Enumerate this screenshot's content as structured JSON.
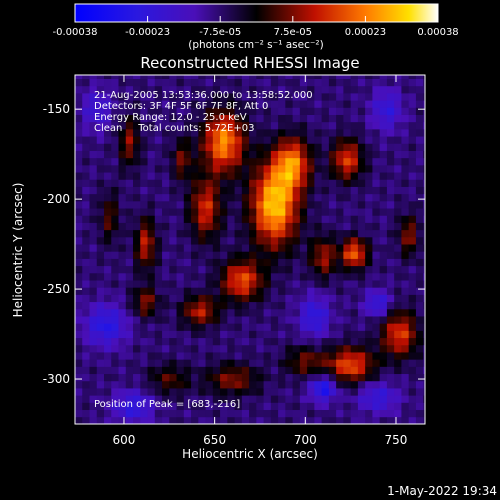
{
  "chart_data": {
    "type": "heatmap",
    "title": "Reconstructed RHESSI Image",
    "xlabel": "Heliocentric X (arcsec)",
    "ylabel": "Heliocentric Y (arcsec)",
    "xlim": [
      573,
      766
    ],
    "ylim": [
      -325,
      -131
    ],
    "xticks": [
      600,
      650,
      700,
      750
    ],
    "yticks": [
      -150,
      -200,
      -250,
      -300
    ],
    "colorbar": {
      "ticks": [
        "-0.00038",
        "-0.00023",
        "-7.5e-05",
        "7.5e-05",
        "0.00023",
        "0.00038"
      ],
      "unit_label": "(photons cm⁻² s⁻¹ asec⁻²)",
      "range": [
        -0.00038,
        0.00038
      ]
    },
    "annotations": [
      "21-Aug-2005 13:53:36.000 to 13:58:52.000",
      "Detectors: 3F 4F 5F 6F 7F 8F, Att 0",
      "Energy Range: 12.0 - 25.0 keV",
      "Clean     Total counts: 5.72E+03"
    ],
    "peak_label": "Position of Peak = [683,-216]",
    "peak": [
      683,
      -216
    ],
    "sources": [
      {
        "x": 683,
        "y": -203,
        "amp": 0.00038,
        "sx": 9,
        "sy": 16
      },
      {
        "x": 693,
        "y": -180,
        "amp": 0.00028,
        "sx": 7,
        "sy": 10
      },
      {
        "x": 655,
        "y": -168,
        "amp": 0.00032,
        "sx": 8,
        "sy": 12
      },
      {
        "x": 645,
        "y": -205,
        "amp": 0.00022,
        "sx": 6,
        "sy": 12
      },
      {
        "x": 665,
        "y": -245,
        "amp": 0.00026,
        "sx": 8,
        "sy": 8
      },
      {
        "x": 642,
        "y": -262,
        "amp": 0.0002,
        "sx": 7,
        "sy": 6
      },
      {
        "x": 723,
        "y": -178,
        "amp": 0.00024,
        "sx": 6,
        "sy": 8
      },
      {
        "x": 727,
        "y": -230,
        "amp": 0.00028,
        "sx": 5,
        "sy": 6
      },
      {
        "x": 710,
        "y": -232,
        "amp": 0.00018,
        "sx": 5,
        "sy": 8
      },
      {
        "x": 725,
        "y": -292,
        "amp": 0.00026,
        "sx": 9,
        "sy": 7
      },
      {
        "x": 752,
        "y": -275,
        "amp": 0.00024,
        "sx": 7,
        "sy": 9
      },
      {
        "x": 757,
        "y": -220,
        "amp": 0.00016,
        "sx": 4,
        "sy": 8
      },
      {
        "x": 700,
        "y": -290,
        "amp": 0.00014,
        "sx": 8,
        "sy": 6
      },
      {
        "x": 612,
        "y": -225,
        "amp": 0.0002,
        "sx": 4,
        "sy": 10
      },
      {
        "x": 603,
        "y": -168,
        "amp": 0.00016,
        "sx": 4,
        "sy": 10
      },
      {
        "x": 632,
        "y": -178,
        "amp": 0.00014,
        "sx": 4,
        "sy": 8
      },
      {
        "x": 592,
        "y": -210,
        "amp": 0.00012,
        "sx": 4,
        "sy": 10
      },
      {
        "x": 660,
        "y": -300,
        "amp": 0.00016,
        "sx": 10,
        "sy": 6
      },
      {
        "x": 625,
        "y": -300,
        "amp": 0.00012,
        "sx": 8,
        "sy": 6
      },
      {
        "x": 612,
        "y": -257,
        "amp": 0.00016,
        "sx": 5,
        "sy": 6
      },
      {
        "x": 590,
        "y": -270,
        "amp": -0.00018,
        "sx": 8,
        "sy": 8
      },
      {
        "x": 705,
        "y": -265,
        "amp": -0.00016,
        "sx": 6,
        "sy": 8
      },
      {
        "x": 710,
        "y": -305,
        "amp": -0.00022,
        "sx": 5,
        "sy": 5
      },
      {
        "x": 605,
        "y": -315,
        "amp": -0.00016,
        "sx": 8,
        "sy": 6
      },
      {
        "x": 740,
        "y": -310,
        "amp": -0.00014,
        "sx": 8,
        "sy": 6
      },
      {
        "x": 585,
        "y": -150,
        "amp": -0.00012,
        "sx": 6,
        "sy": 8
      },
      {
        "x": 745,
        "y": -150,
        "amp": -0.00014,
        "sx": 6,
        "sy": 8
      },
      {
        "x": 740,
        "y": -258,
        "amp": -0.00016,
        "sx": 5,
        "sy": 5
      }
    ]
  },
  "footer": {
    "datetime": "1-May-2022 19:34"
  }
}
